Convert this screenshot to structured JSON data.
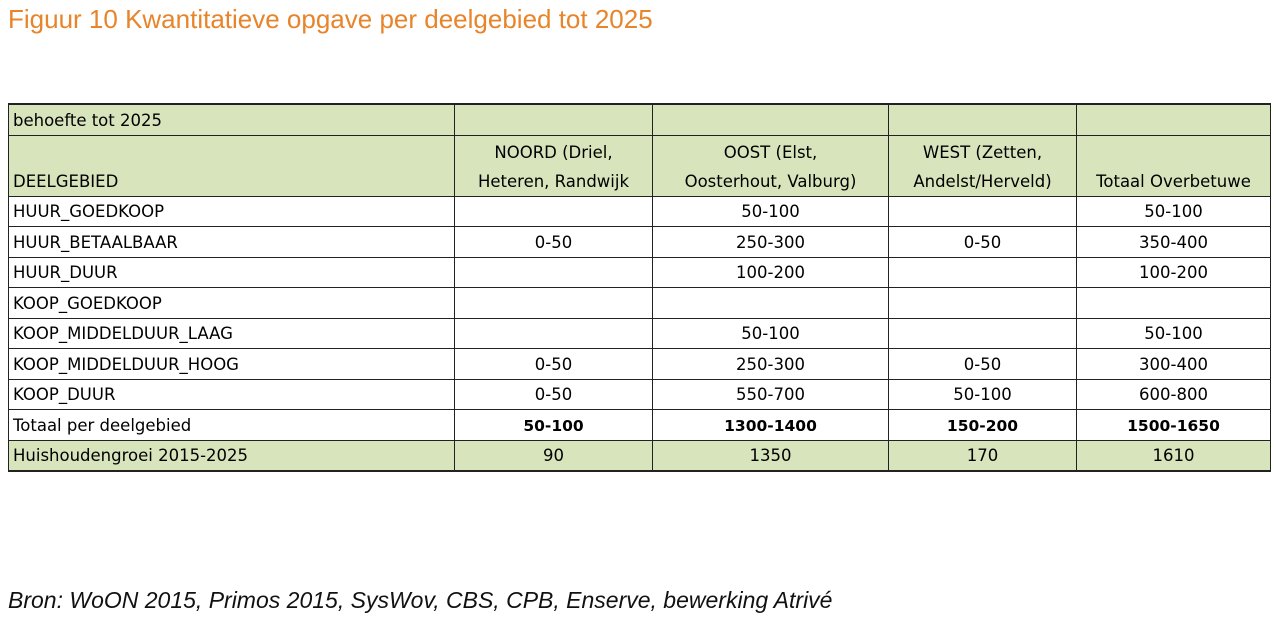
{
  "figure": {
    "title": "Figuur 10 Kwantitatieve opgave per deelgebied tot 2025",
    "accent_color": "#e8842a",
    "header_fill": "#d8e4bc"
  },
  "table": {
    "caption": "behoefte tot 2025",
    "columns": {
      "c0": "DEELGEBIED",
      "c1_line1": "NOORD (Driel,",
      "c1_line2": "Heteren, Randwijk",
      "c2_line1": "OOST (Elst,",
      "c2_line2": "Oosterhout, Valburg)",
      "c3_line1": "WEST (Zetten,",
      "c3_line2": "Andelst/Herveld)",
      "c4": "Totaal Overbetuwe"
    },
    "rows": [
      {
        "label": "HUUR_GOEDKOOP",
        "noord": "",
        "oost": "50-100",
        "west": "",
        "totaal": "50-100"
      },
      {
        "label": "HUUR_BETAALBAAR",
        "noord": "0-50",
        "oost": "250-300",
        "west": "0-50",
        "totaal": "350-400"
      },
      {
        "label": "HUUR_DUUR",
        "noord": "",
        "oost": "100-200",
        "west": "",
        "totaal": "100-200"
      },
      {
        "label": "KOOP_GOEDKOOP",
        "noord": "",
        "oost": "",
        "west": "",
        "totaal": ""
      },
      {
        "label": "KOOP_MIDDELDUUR_LAAG",
        "noord": "",
        "oost": "50-100",
        "west": "",
        "totaal": "50-100"
      },
      {
        "label": "KOOP_MIDDELDUUR_HOOG",
        "noord": "0-50",
        "oost": "250-300",
        "west": "0-50",
        "totaal": "300-400"
      },
      {
        "label": "KOOP_DUUR",
        "noord": "0-50",
        "oost": "550-700",
        "west": "50-100",
        "totaal": "600-800"
      }
    ],
    "total_row": {
      "label": "Totaal per deelgebied",
      "noord": "50-100",
      "oost": "1300-1400",
      "west": "150-200",
      "totaal": "1500-1650"
    },
    "growth_row": {
      "label": "Huishoudengroei 2015-2025",
      "noord": "90",
      "oost": "1350",
      "west": "170",
      "totaal": "1610"
    }
  },
  "source_note": "Bron: WoON 2015, Primos 2015, SysWov, CBS, CPB, Enserve, bewerking Atrivé"
}
